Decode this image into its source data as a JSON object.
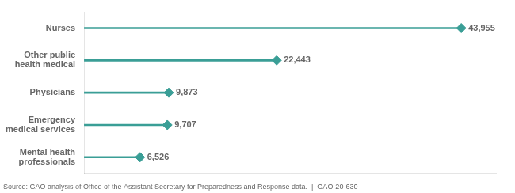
{
  "chart_data": {
    "type": "lollipop",
    "orientation": "horizontal",
    "categories": [
      "Nurses",
      "Other public\nhealth medical",
      "Physicians",
      "Emergency\nmedical services",
      "Mental health\nprofessionals"
    ],
    "values": [
      43955,
      22443,
      9873,
      9707,
      6526
    ],
    "value_labels": [
      "43,955",
      "22,443",
      "9,873",
      "9,707",
      "6,526"
    ],
    "data_labels": true,
    "color": "#3a9e96",
    "marker": "diamond",
    "xlim": [
      0,
      48000
    ],
    "tick_labels": "y",
    "grid": false,
    "annotations": [
      "Source: GAO analysis of Office of the Assistant Secretary for Preparedness and Response data.  |  GAO-20-630"
    ]
  }
}
